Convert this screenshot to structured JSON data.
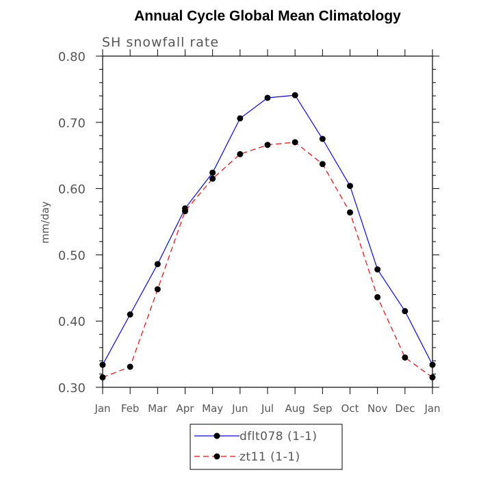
{
  "chart_data": {
    "type": "line",
    "title": "Annual Cycle Global Mean Climatology",
    "subtitle": "SH snowfall rate",
    "ylabel": "mm/day",
    "xlabel": "",
    "categories": [
      "Jan",
      "Feb",
      "Mar",
      "Apr",
      "May",
      "Jun",
      "Jul",
      "Aug",
      "Sep",
      "Oct",
      "Nov",
      "Dec",
      "Jan"
    ],
    "ylim": [
      0.3,
      0.8
    ],
    "yticks": [
      "0.30",
      "0.40",
      "0.50",
      "0.60",
      "0.70",
      "0.80"
    ],
    "series": [
      {
        "name": "dflt078 (1-1)",
        "color": "#0000ff",
        "dash": "solid",
        "values": [
          0.334,
          0.41,
          0.486,
          0.57,
          0.624,
          0.706,
          0.737,
          0.741,
          0.675,
          0.604,
          0.478,
          0.415,
          0.334
        ]
      },
      {
        "name": "zt11 (1-1)",
        "color": "#ff0000",
        "dash": "dashed",
        "values": [
          0.315,
          0.331,
          0.448,
          0.566,
          0.615,
          0.652,
          0.666,
          0.67,
          0.637,
          0.564,
          0.436,
          0.345,
          0.315
        ]
      }
    ],
    "legend": "bottom-center",
    "grid": false
  }
}
